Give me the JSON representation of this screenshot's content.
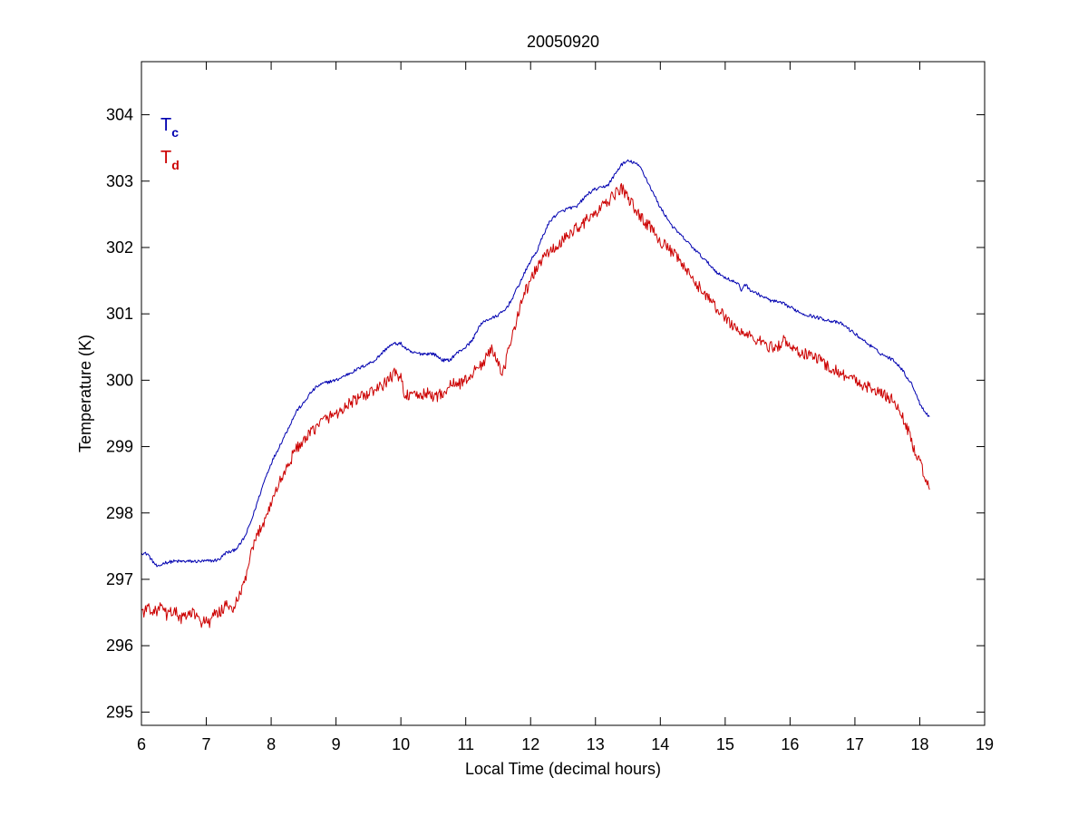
{
  "chart_data": {
    "type": "line",
    "title": "20050920",
    "xlabel": "Local Time (decimal hours)",
    "ylabel": "Temperature (K)",
    "xlim": [
      6,
      19
    ],
    "ylim": [
      294.8,
      304.8
    ],
    "x_ticks": [
      6,
      7,
      8,
      9,
      10,
      11,
      12,
      13,
      14,
      15,
      16,
      17,
      18,
      19
    ],
    "x_tick_labels": [
      "6",
      "7",
      "8",
      "9",
      "10",
      "11",
      "12",
      "13",
      "14",
      "15",
      "16",
      "17",
      "18",
      "19"
    ],
    "y_ticks": [
      295,
      296,
      297,
      298,
      299,
      300,
      301,
      302,
      303,
      304
    ],
    "y_tick_labels": [
      "295",
      "296",
      "297",
      "298",
      "299",
      "300",
      "301",
      "302",
      "303",
      "304"
    ],
    "grid": false,
    "legend_position": "top-left",
    "series": [
      {
        "name": "Tc",
        "legend_main": "T",
        "legend_sub": "c",
        "color": "#0000b0",
        "points": [
          [
            6.0,
            297.4
          ],
          [
            6.1,
            297.38
          ],
          [
            6.15,
            297.3
          ],
          [
            6.25,
            297.18
          ],
          [
            6.35,
            297.25
          ],
          [
            6.5,
            297.27
          ],
          [
            6.7,
            297.27
          ],
          [
            6.9,
            297.27
          ],
          [
            7.1,
            297.28
          ],
          [
            7.2,
            297.3
          ],
          [
            7.3,
            297.4
          ],
          [
            7.4,
            297.42
          ],
          [
            7.5,
            297.5
          ],
          [
            7.6,
            297.65
          ],
          [
            7.7,
            297.9
          ],
          [
            7.8,
            298.2
          ],
          [
            7.9,
            298.5
          ],
          [
            8.0,
            298.75
          ],
          [
            8.1,
            298.95
          ],
          [
            8.2,
            299.15
          ],
          [
            8.3,
            299.35
          ],
          [
            8.4,
            299.55
          ],
          [
            8.5,
            299.65
          ],
          [
            8.6,
            299.8
          ],
          [
            8.7,
            299.9
          ],
          [
            8.8,
            299.95
          ],
          [
            8.9,
            299.98
          ],
          [
            9.0,
            300.0
          ],
          [
            9.1,
            300.05
          ],
          [
            9.2,
            300.1
          ],
          [
            9.3,
            300.15
          ],
          [
            9.4,
            300.2
          ],
          [
            9.5,
            300.25
          ],
          [
            9.6,
            300.3
          ],
          [
            9.7,
            300.4
          ],
          [
            9.8,
            300.5
          ],
          [
            9.9,
            300.55
          ],
          [
            10.0,
            300.55
          ],
          [
            10.05,
            300.5
          ],
          [
            10.15,
            300.42
          ],
          [
            10.3,
            300.4
          ],
          [
            10.5,
            300.4
          ],
          [
            10.65,
            300.3
          ],
          [
            10.75,
            300.3
          ],
          [
            10.85,
            300.4
          ],
          [
            11.0,
            300.5
          ],
          [
            11.1,
            300.6
          ],
          [
            11.2,
            300.8
          ],
          [
            11.3,
            300.9
          ],
          [
            11.45,
            300.95
          ],
          [
            11.6,
            301.05
          ],
          [
            11.7,
            301.2
          ],
          [
            11.8,
            301.4
          ],
          [
            11.9,
            301.6
          ],
          [
            12.0,
            301.8
          ],
          [
            12.1,
            301.95
          ],
          [
            12.2,
            302.2
          ],
          [
            12.3,
            302.4
          ],
          [
            12.4,
            302.5
          ],
          [
            12.5,
            302.55
          ],
          [
            12.6,
            302.6
          ],
          [
            12.7,
            302.6
          ],
          [
            12.8,
            302.72
          ],
          [
            12.9,
            302.82
          ],
          [
            13.0,
            302.88
          ],
          [
            13.1,
            302.9
          ],
          [
            13.2,
            302.95
          ],
          [
            13.3,
            303.1
          ],
          [
            13.4,
            303.25
          ],
          [
            13.5,
            303.3
          ],
          [
            13.6,
            303.28
          ],
          [
            13.7,
            303.2
          ],
          [
            13.8,
            303.0
          ],
          [
            13.9,
            302.8
          ],
          [
            14.0,
            302.6
          ],
          [
            14.1,
            302.45
          ],
          [
            14.2,
            302.3
          ],
          [
            14.3,
            302.2
          ],
          [
            14.4,
            302.1
          ],
          [
            14.5,
            302.0
          ],
          [
            14.6,
            301.9
          ],
          [
            14.7,
            301.8
          ],
          [
            14.8,
            301.7
          ],
          [
            14.9,
            301.6
          ],
          [
            15.0,
            301.55
          ],
          [
            15.1,
            301.5
          ],
          [
            15.2,
            301.45
          ],
          [
            15.25,
            301.35
          ],
          [
            15.3,
            301.45
          ],
          [
            15.4,
            301.35
          ],
          [
            15.5,
            301.3
          ],
          [
            15.6,
            301.25
          ],
          [
            15.7,
            301.2
          ],
          [
            15.8,
            301.18
          ],
          [
            15.9,
            301.15
          ],
          [
            16.0,
            301.1
          ],
          [
            16.2,
            301.0
          ],
          [
            16.4,
            300.95
          ],
          [
            16.6,
            300.9
          ],
          [
            16.8,
            300.85
          ],
          [
            17.0,
            300.7
          ],
          [
            17.2,
            300.55
          ],
          [
            17.4,
            300.4
          ],
          [
            17.6,
            300.3
          ],
          [
            17.7,
            300.2
          ],
          [
            17.8,
            300.05
          ],
          [
            17.9,
            299.9
          ],
          [
            18.0,
            299.65
          ],
          [
            18.1,
            299.5
          ],
          [
            18.15,
            299.45
          ]
        ]
      },
      {
        "name": "Td",
        "legend_main": "T",
        "legend_sub": "d",
        "color": "#cc0000",
        "points": [
          [
            6.0,
            296.55
          ],
          [
            6.05,
            296.5
          ],
          [
            6.1,
            296.6
          ],
          [
            6.2,
            296.5
          ],
          [
            6.3,
            296.58
          ],
          [
            6.4,
            296.45
          ],
          [
            6.5,
            296.55
          ],
          [
            6.6,
            296.4
          ],
          [
            6.7,
            296.45
          ],
          [
            6.8,
            296.5
          ],
          [
            6.9,
            296.35
          ],
          [
            7.0,
            296.4
          ],
          [
            7.05,
            296.3
          ],
          [
            7.1,
            296.45
          ],
          [
            7.2,
            296.5
          ],
          [
            7.3,
            296.6
          ],
          [
            7.4,
            296.55
          ],
          [
            7.5,
            296.7
          ],
          [
            7.6,
            297.0
          ],
          [
            7.7,
            297.4
          ],
          [
            7.8,
            297.7
          ],
          [
            7.9,
            297.9
          ],
          [
            8.0,
            298.15
          ],
          [
            8.1,
            298.4
          ],
          [
            8.2,
            298.6
          ],
          [
            8.3,
            298.8
          ],
          [
            8.4,
            299.0
          ],
          [
            8.5,
            299.05
          ],
          [
            8.6,
            299.2
          ],
          [
            8.7,
            299.3
          ],
          [
            8.8,
            299.4
          ],
          [
            8.9,
            299.45
          ],
          [
            9.0,
            299.5
          ],
          [
            9.1,
            299.55
          ],
          [
            9.2,
            299.65
          ],
          [
            9.3,
            299.7
          ],
          [
            9.4,
            299.75
          ],
          [
            9.5,
            299.8
          ],
          [
            9.6,
            299.85
          ],
          [
            9.7,
            299.9
          ],
          [
            9.8,
            300.0
          ],
          [
            9.9,
            300.1
          ],
          [
            10.0,
            300.05
          ],
          [
            10.05,
            299.8
          ],
          [
            10.2,
            299.75
          ],
          [
            10.4,
            299.8
          ],
          [
            10.55,
            299.75
          ],
          [
            10.7,
            299.85
          ],
          [
            10.8,
            299.95
          ],
          [
            10.9,
            299.95
          ],
          [
            11.0,
            300.0
          ],
          [
            11.1,
            300.1
          ],
          [
            11.2,
            300.2
          ],
          [
            11.3,
            300.3
          ],
          [
            11.4,
            300.5
          ],
          [
            11.5,
            300.3
          ],
          [
            11.55,
            300.0
          ],
          [
            11.6,
            300.2
          ],
          [
            11.7,
            300.6
          ],
          [
            11.8,
            301.0
          ],
          [
            11.9,
            301.3
          ],
          [
            12.0,
            301.5
          ],
          [
            12.1,
            301.7
          ],
          [
            12.2,
            301.85
          ],
          [
            12.3,
            301.95
          ],
          [
            12.4,
            302.0
          ],
          [
            12.5,
            302.1
          ],
          [
            12.6,
            302.2
          ],
          [
            12.7,
            302.3
          ],
          [
            12.8,
            302.35
          ],
          [
            12.9,
            302.45
          ],
          [
            13.0,
            302.5
          ],
          [
            13.1,
            302.6
          ],
          [
            13.2,
            302.7
          ],
          [
            13.3,
            302.8
          ],
          [
            13.4,
            302.9
          ],
          [
            13.5,
            302.75
          ],
          [
            13.6,
            302.6
          ],
          [
            13.7,
            302.45
          ],
          [
            13.8,
            302.35
          ],
          [
            13.9,
            302.25
          ],
          [
            14.0,
            302.1
          ],
          [
            14.1,
            302.0
          ],
          [
            14.2,
            301.9
          ],
          [
            14.3,
            301.8
          ],
          [
            14.4,
            301.65
          ],
          [
            14.5,
            301.5
          ],
          [
            14.6,
            301.4
          ],
          [
            14.7,
            301.3
          ],
          [
            14.8,
            301.15
          ],
          [
            14.9,
            301.05
          ],
          [
            15.0,
            300.95
          ],
          [
            15.1,
            300.85
          ],
          [
            15.2,
            300.75
          ],
          [
            15.3,
            300.7
          ],
          [
            15.4,
            300.65
          ],
          [
            15.5,
            300.6
          ],
          [
            15.6,
            300.55
          ],
          [
            15.7,
            300.5
          ],
          [
            15.8,
            300.5
          ],
          [
            15.9,
            300.6
          ],
          [
            16.0,
            300.5
          ],
          [
            16.1,
            300.45
          ],
          [
            16.2,
            300.4
          ],
          [
            16.4,
            300.35
          ],
          [
            16.6,
            300.2
          ],
          [
            16.8,
            300.1
          ],
          [
            17.0,
            300.0
          ],
          [
            17.2,
            299.9
          ],
          [
            17.4,
            299.8
          ],
          [
            17.6,
            299.7
          ],
          [
            17.7,
            299.5
          ],
          [
            17.8,
            299.3
          ],
          [
            17.9,
            299.0
          ],
          [
            18.0,
            298.75
          ],
          [
            18.1,
            298.5
          ],
          [
            18.15,
            298.35
          ]
        ]
      }
    ]
  }
}
